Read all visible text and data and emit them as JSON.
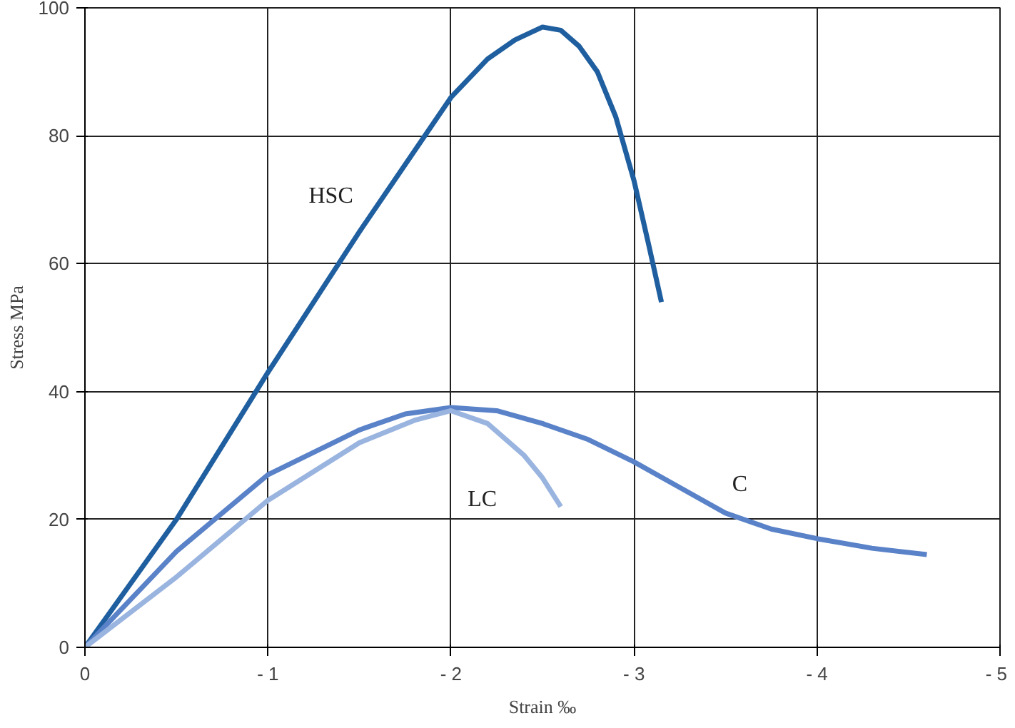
{
  "chart_data": {
    "type": "line",
    "xlabel": "Strain ‰",
    "ylabel": "Stress MPa",
    "xlim": [
      0,
      -5
    ],
    "ylim": [
      0,
      100
    ],
    "xticks": [
      0,
      {
        "value": -1,
        "label": "- 1"
      },
      {
        "value": -2,
        "label": "- 2"
      },
      {
        "value": -3,
        "label": "- 3"
      },
      {
        "value": -4,
        "label": "- 4"
      },
      {
        "value": -5,
        "label": "- 5"
      }
    ],
    "yticks": [
      0,
      20,
      40,
      60,
      80,
      100
    ],
    "grid": true,
    "line_style": "solid",
    "series": [
      {
        "name": "HSC",
        "color": "#1f5fa0",
        "x": [
          0,
          -0.5,
          -1,
          -1.5,
          -2,
          -2.2,
          -2.35,
          -2.5,
          -2.6,
          -2.7,
          -2.8,
          -2.9,
          -3.0,
          -3.08,
          -3.15
        ],
        "values": [
          0,
          20,
          43,
          65,
          86,
          92,
          95,
          97,
          96.5,
          94,
          90,
          83,
          73,
          63,
          54
        ]
      },
      {
        "name": "C",
        "color": "#5a82c8",
        "x": [
          0,
          -0.5,
          -1,
          -1.5,
          -1.75,
          -2,
          -2.25,
          -2.5,
          -2.75,
          -3,
          -3.25,
          -3.5,
          -3.75,
          -4,
          -4.3,
          -4.6
        ],
        "values": [
          0,
          15,
          27,
          34,
          36.5,
          37.5,
          37,
          35,
          32.5,
          29,
          25,
          21,
          18.5,
          17,
          15.5,
          14.5
        ]
      },
      {
        "name": "LC",
        "color": "#9ab4e0",
        "x": [
          0,
          -0.5,
          -1,
          -1.5,
          -1.8,
          -2,
          -2.2,
          -2.4,
          -2.5,
          -2.6
        ],
        "values": [
          0,
          11,
          23,
          32,
          35.5,
          37,
          35,
          30,
          26.5,
          22
        ]
      }
    ]
  }
}
